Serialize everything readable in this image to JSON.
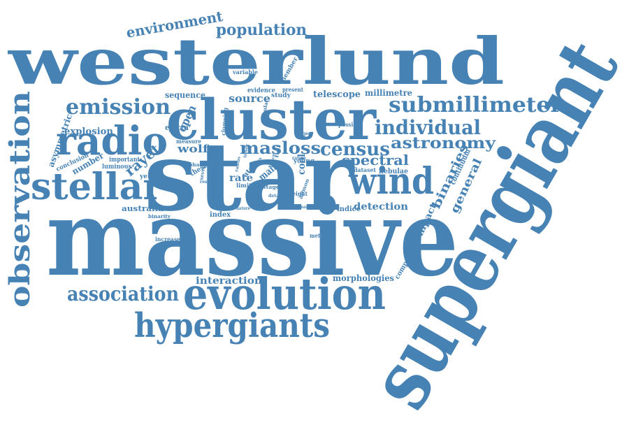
{
  "colors": {
    "word": "#4682b4",
    "background": "#ffffff"
  },
  "words": [
    {
      "id": "massive",
      "text": "massive"
    },
    {
      "id": "star",
      "text": "star"
    },
    {
      "id": "westerlund",
      "text": "westerlund"
    },
    {
      "id": "supergiant",
      "text": "supergiant"
    },
    {
      "id": "cluster",
      "text": "cluster"
    },
    {
      "id": "evolution",
      "text": "evolution"
    },
    {
      "id": "hypergiants",
      "text": "hypergiants"
    },
    {
      "id": "stellar",
      "text": "stellar"
    },
    {
      "id": "wind",
      "text": "wind"
    },
    {
      "id": "radio",
      "text": "radio"
    },
    {
      "id": "observation",
      "text": "observation"
    },
    {
      "id": "emission",
      "text": "emission"
    },
    {
      "id": "submillimeter",
      "text": "submillimeter"
    },
    {
      "id": "individual",
      "text": "individual"
    },
    {
      "id": "census",
      "text": "census"
    },
    {
      "id": "astronomy",
      "text": "astronomy"
    },
    {
      "id": "association",
      "text": "association"
    },
    {
      "id": "population",
      "text": "population"
    },
    {
      "id": "environment",
      "text": "environment"
    },
    {
      "id": "mas",
      "text": "mas"
    },
    {
      "id": "loss",
      "text": "loss"
    },
    {
      "id": "spectral",
      "text": "spectral"
    },
    {
      "id": "rayet",
      "text": "rayet"
    },
    {
      "id": "wolf",
      "text": "wolf"
    },
    {
      "id": "open",
      "text": "open"
    },
    {
      "id": "source",
      "text": "source"
    },
    {
      "id": "binaries",
      "text": "binaries"
    },
    {
      "id": "general",
      "text": "general"
    },
    {
      "id": "interaction",
      "text": "interaction"
    },
    {
      "id": "detection",
      "text": "detection"
    },
    {
      "id": "morphologies",
      "text": "morphologies"
    },
    {
      "id": "explosion",
      "text": "explosion"
    },
    {
      "id": "sequence",
      "text": "sequence"
    },
    {
      "id": "telescope",
      "text": "telescope"
    },
    {
      "id": "millimetre",
      "text": "millimetre"
    },
    {
      "id": "ejecta",
      "text": "ejecta"
    },
    {
      "id": "asymmetric",
      "text": "asymmetric"
    },
    {
      "id": "number",
      "text": "number"
    },
    {
      "id": "compact",
      "text": "compact"
    },
    {
      "id": "continuum",
      "text": "continuum"
    },
    {
      "id": "nebulae",
      "text": "nebulae"
    },
    {
      "id": "australia",
      "text": "australia"
    },
    {
      "id": "cool",
      "text": "cool"
    },
    {
      "id": "rate",
      "text": "rate"
    },
    {
      "id": "main",
      "text": "main"
    },
    {
      "id": "index",
      "text": "index"
    },
    {
      "id": "indice",
      "text": "indice"
    },
    {
      "id": "comparison",
      "text": "comparison"
    },
    {
      "id": "conclusion",
      "text": "conclusion"
    },
    {
      "id": "luminous",
      "text": "luminous"
    },
    {
      "id": "important",
      "text": "important"
    },
    {
      "id": "measure",
      "text": "measure"
    },
    {
      "id": "yellow",
      "text": "yellow"
    },
    {
      "id": "member",
      "text": "member"
    },
    {
      "id": "evidence",
      "text": "evidence"
    },
    {
      "id": "study",
      "text": "study"
    },
    {
      "id": "present",
      "text": "present"
    },
    {
      "id": "variable",
      "text": "variable"
    },
    {
      "id": "young",
      "text": "young"
    },
    {
      "id": "possible",
      "text": "possible"
    },
    {
      "id": "clumping",
      "text": "clumping"
    },
    {
      "id": "nebular",
      "text": "nebular"
    },
    {
      "id": "thesis",
      "text": "thesis"
    },
    {
      "id": "phase",
      "text": "phase"
    },
    {
      "id": "atca",
      "text": "atca"
    },
    {
      "id": "limit",
      "text": "limit"
    },
    {
      "id": "stage",
      "text": "stage"
    },
    {
      "id": "eight",
      "text": "eight"
    },
    {
      "id": "dataset",
      "text": "dataset"
    },
    {
      "id": "binarity",
      "text": "binarity"
    },
    {
      "id": "increase",
      "text": "increase"
    },
    {
      "id": "depend",
      "text": "depend"
    },
    {
      "id": "method",
      "text": "method"
    },
    {
      "id": "several",
      "text": "several"
    },
    {
      "id": "result",
      "text": "result"
    },
    {
      "id": "alimon",
      "text": "alimon"
    },
    {
      "id": "range",
      "text": "range"
    },
    {
      "id": "nature",
      "text": "nature"
    },
    {
      "id": "detail",
      "text": "detail"
    },
    {
      "id": "binary",
      "text": "binary"
    },
    {
      "id": "rare",
      "text": "rare"
    },
    {
      "id": "type",
      "text": "type"
    },
    {
      "id": "full",
      "text": "full"
    },
    {
      "id": "cross",
      "text": "cross"
    },
    {
      "id": "radius",
      "text": "radius"
    },
    {
      "id": "hence",
      "text": "hence"
    },
    {
      "id": "inner",
      "text": "inner"
    }
  ]
}
